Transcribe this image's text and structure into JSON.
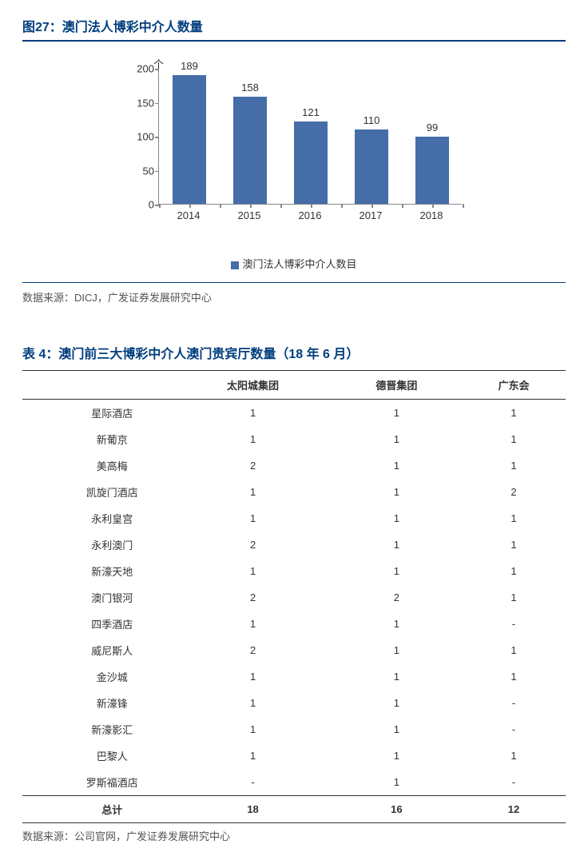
{
  "figure": {
    "title": "图27：澳门法人博彩中介人数量",
    "y_axis_title": "个",
    "chart": {
      "type": "bar",
      "categories": [
        "2014",
        "2015",
        "2016",
        "2017",
        "2018"
      ],
      "values": [
        189,
        158,
        121,
        110,
        99
      ],
      "bar_color": "#456da8",
      "ylim": [
        0,
        200
      ],
      "ytick_step": 50,
      "axis_color": "#878787",
      "background_color": "#ffffff",
      "bar_width_ratio": 0.55,
      "label_fontsize": 13
    },
    "legend_label": "澳门法人博彩中介人数目",
    "source": "数据来源：DICJ，广发证券发展研究中心"
  },
  "table": {
    "title": "表 4：澳门前三大博彩中介人澳门贵宾厅数量（18 年 6 月）",
    "columns": [
      "",
      "太阳城集团",
      "德晋集团",
      "广东会"
    ],
    "rows": [
      [
        "星际酒店",
        "1",
        "1",
        "1"
      ],
      [
        "新葡京",
        "1",
        "1",
        "1"
      ],
      [
        "美高梅",
        "2",
        "1",
        "1"
      ],
      [
        "凯旋门酒店",
        "1",
        "1",
        "2"
      ],
      [
        "永利皇宫",
        "1",
        "1",
        "1"
      ],
      [
        "永利澳门",
        "2",
        "1",
        "1"
      ],
      [
        "新濠天地",
        "1",
        "1",
        "1"
      ],
      [
        "澳门银河",
        "2",
        "2",
        "1"
      ],
      [
        "四季酒店",
        "1",
        "1",
        "-"
      ],
      [
        "威尼斯人",
        "2",
        "1",
        "1"
      ],
      [
        "金沙城",
        "1",
        "1",
        "1"
      ],
      [
        "新濠锋",
        "1",
        "1",
        "-"
      ],
      [
        "新濠影汇",
        "1",
        "1",
        "-"
      ],
      [
        "巴黎人",
        "1",
        "1",
        "1"
      ],
      [
        "罗斯福酒店",
        "-",
        "1",
        "-"
      ]
    ],
    "total_row": [
      "总计",
      "18",
      "16",
      "12"
    ],
    "source": "数据来源：公司官网，广发证券发展研究中心"
  }
}
